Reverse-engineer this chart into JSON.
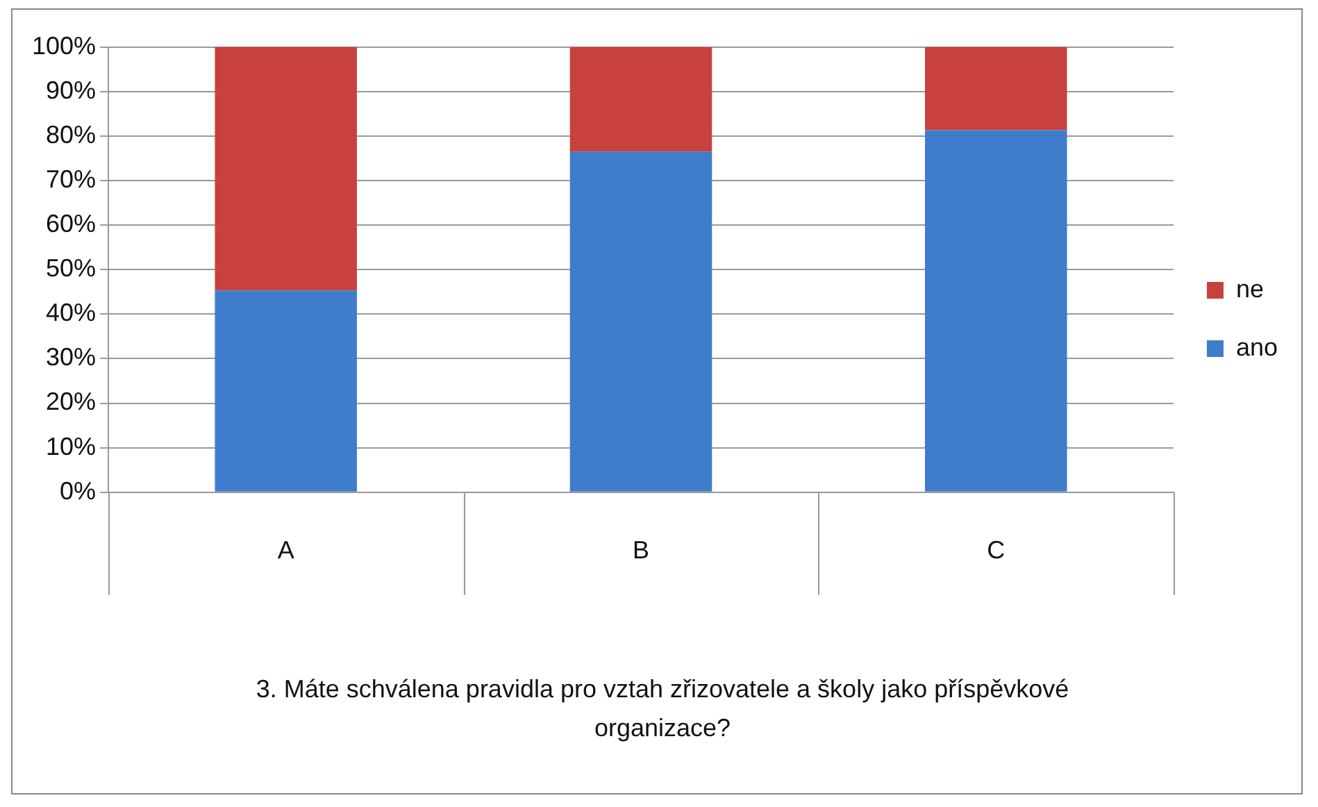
{
  "chart_data": {
    "type": "bar",
    "stacked": true,
    "categories": [
      "A",
      "B",
      "C"
    ],
    "series": [
      {
        "name": "ano",
        "color": "#3f7ccc",
        "values": [
          45.3,
          76.5,
          81.3
        ]
      },
      {
        "name": "ne",
        "color": "#c8413e",
        "values": [
          54.7,
          23.5,
          18.7
        ]
      }
    ],
    "xlabel": "3. Máte schválena pravidla pro vztah zřizovatele a školy jako příspěvkové organizace?",
    "ylim": [
      0,
      100
    ],
    "yticks": [
      {
        "value": 0,
        "label": "0%"
      },
      {
        "value": 10,
        "label": "10%"
      },
      {
        "value": 20,
        "label": "20%"
      },
      {
        "value": 30,
        "label": "30%"
      },
      {
        "value": 40,
        "label": "40%"
      },
      {
        "value": 50,
        "label": "50%"
      },
      {
        "value": 60,
        "label": "60%"
      },
      {
        "value": 70,
        "label": "70%"
      },
      {
        "value": 80,
        "label": "80%"
      },
      {
        "value": 90,
        "label": "90%"
      },
      {
        "value": 100,
        "label": "100%"
      }
    ],
    "grid": "y",
    "legend": "right"
  }
}
